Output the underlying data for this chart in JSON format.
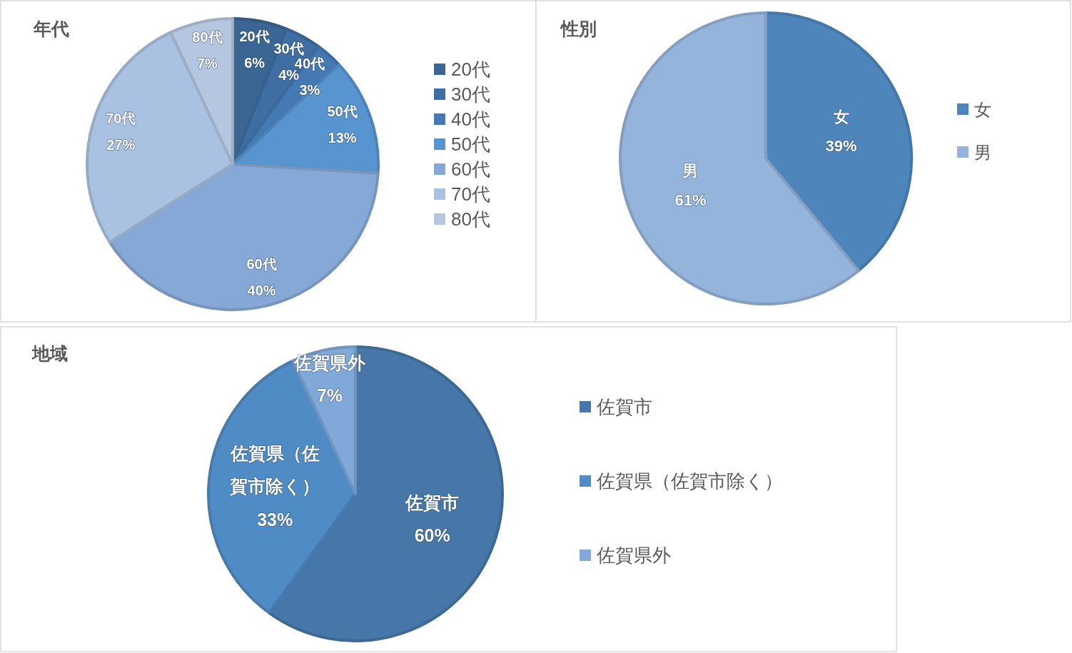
{
  "chart_data": [
    {
      "type": "pie",
      "title": "年代",
      "categories": [
        "20代",
        "30代",
        "40代",
        "50代",
        "60代",
        "70代",
        "80代"
      ],
      "values": [
        6,
        4,
        3,
        13,
        40,
        27,
        7
      ],
      "colors": [
        "#3b6592",
        "#3f6ea3",
        "#4479b3",
        "#5895d0",
        "#86a8d6",
        "#a9c2e1",
        "#b4c6e0"
      ],
      "value_labels": [
        "6%",
        "4%",
        "3%",
        "13%",
        "40%",
        "27%",
        "7%"
      ],
      "legend": "right"
    },
    {
      "type": "pie",
      "title": "性別",
      "categories": [
        "女",
        "男"
      ],
      "values": [
        39,
        61
      ],
      "colors": [
        "#4e86bc",
        "#95b4dc"
      ],
      "value_labels": [
        "39%",
        "61%"
      ],
      "legend": "right"
    },
    {
      "type": "pie",
      "title": "地域",
      "categories": [
        "佐賀市",
        "佐賀県（佐賀市除く）",
        "佐賀県外"
      ],
      "values": [
        60,
        33,
        7
      ],
      "colors": [
        "#4677a8",
        "#4f8cc6",
        "#80a8d8"
      ],
      "value_labels": [
        "60%",
        "33%",
        "7%"
      ],
      "legend": "right"
    }
  ]
}
